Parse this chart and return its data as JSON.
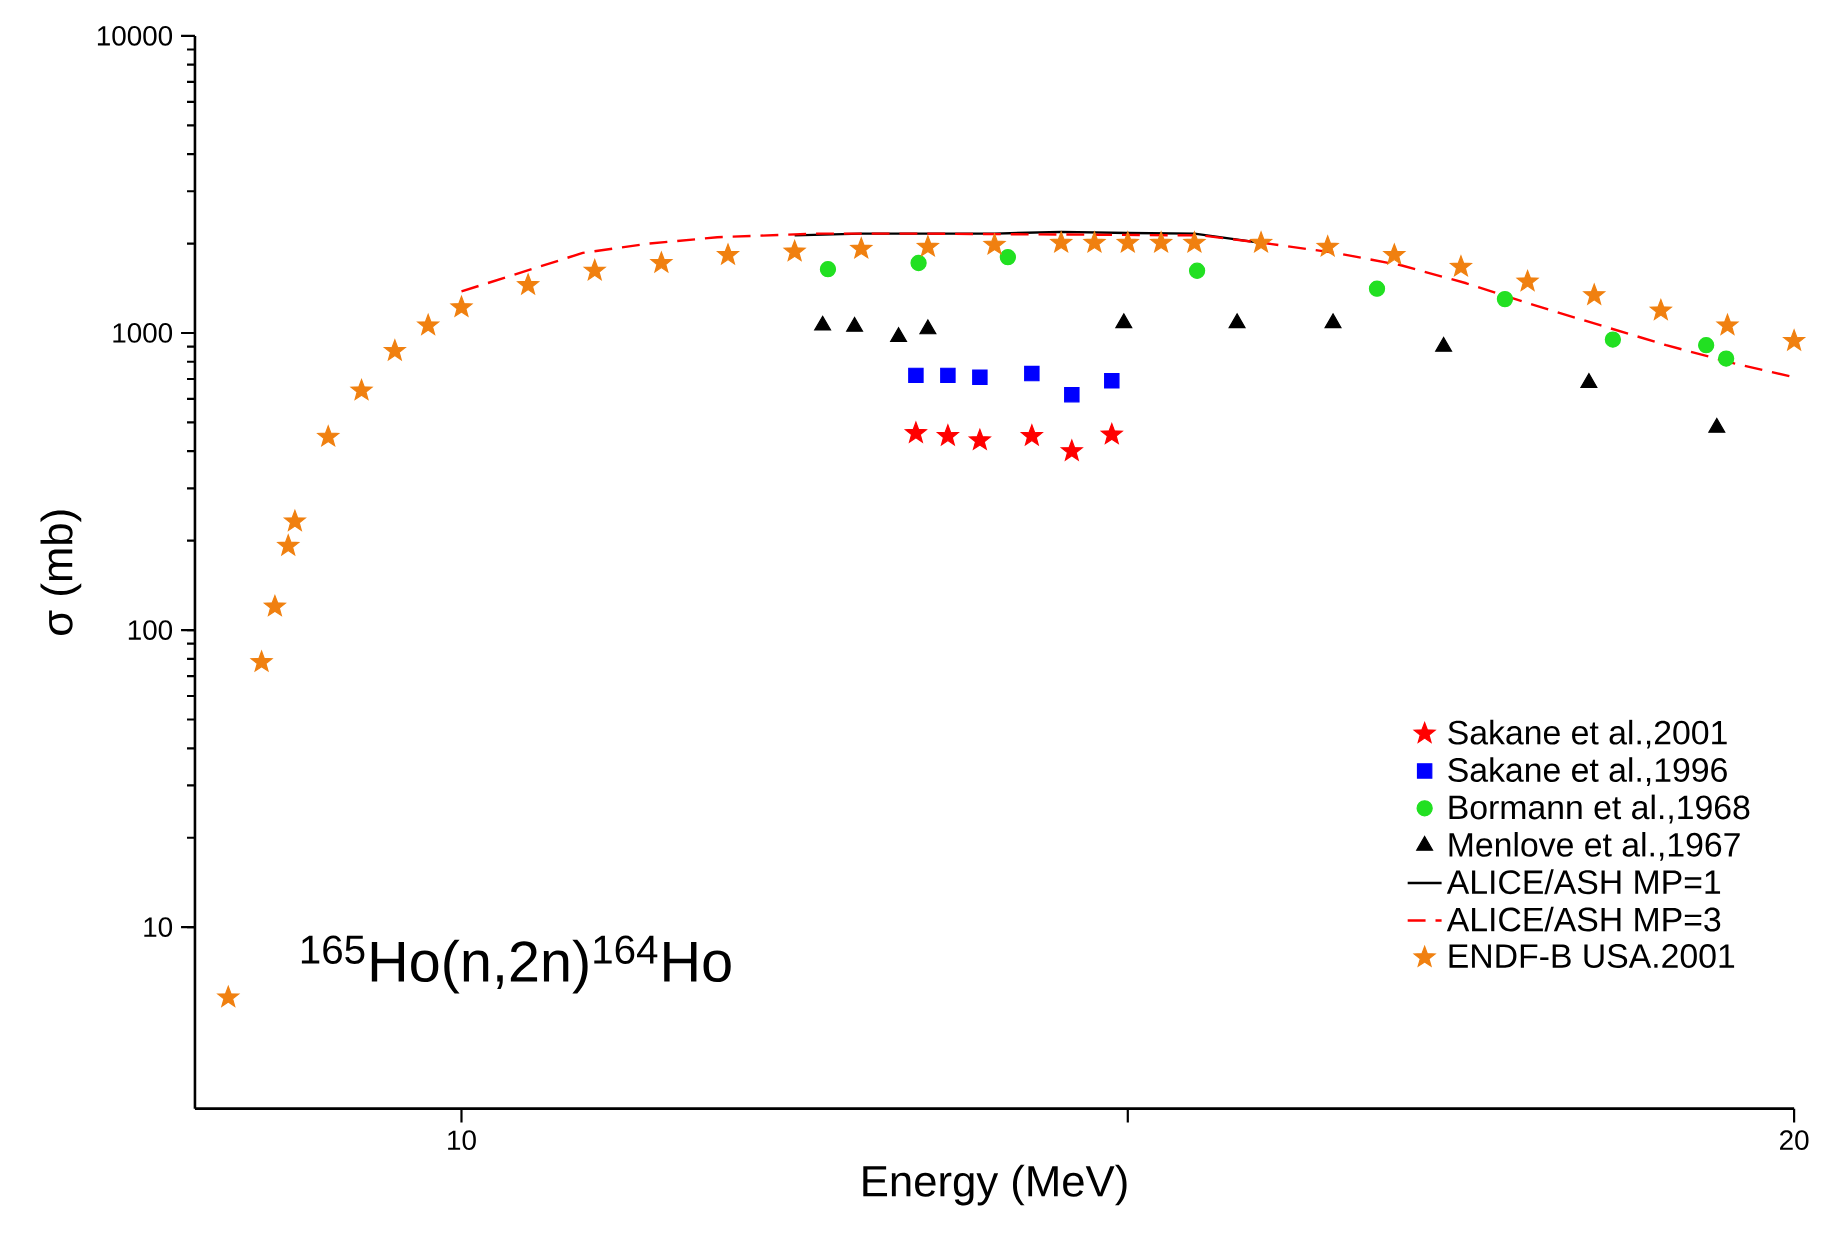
{
  "chart_data": {
    "type": "scatter",
    "xlabel": "Energy (MeV)",
    "ylabel": "σ (mb)",
    "log": "y",
    "grid": false,
    "legend": "bottom right",
    "xlim": [
      8,
      20
    ],
    "xticks": [
      10,
      {
        "value": 15,
        "label": null
      },
      20
    ],
    "ylim": [
      2.45,
      10000
    ],
    "yticks": [
      10,
      100,
      1000,
      10000
    ],
    "annotations": [
      "$^{165}$Ho(n,2n)$^{164}$Ho"
    ],
    "series": [
      {
        "name": "Sakane et al.,2001",
        "marker": "star",
        "color": "#ff0000",
        "x": [
          13.41,
          13.65,
          13.89,
          14.28,
          14.58,
          14.88
        ],
        "values": [
          460,
          450,
          435,
          450,
          400,
          455
        ]
      },
      {
        "name": "Sakane et al.,1996",
        "marker": "square",
        "color": "#0000ff",
        "x": [
          13.41,
          13.65,
          13.89,
          14.28,
          14.58,
          14.88
        ],
        "values": [
          720,
          720,
          710,
          730,
          620,
          690
        ]
      },
      {
        "name": "Bormann et al.,1968",
        "marker": "circle",
        "color": "#22e022",
        "x": [
          12.75,
          13.43,
          14.1,
          15.52,
          16.87,
          17.83,
          18.64,
          19.34,
          19.49
        ],
        "values": [
          1640,
          1720,
          1800,
          1620,
          1410,
          1300,
          950,
          910,
          820
        ]
      },
      {
        "name": "Menlove et al.,1967",
        "marker": "triangle",
        "color": "#000000",
        "x": [
          12.71,
          12.95,
          13.28,
          13.5,
          14.97,
          15.82,
          16.54,
          17.37,
          18.46,
          19.42
        ],
        "values": [
          1060,
          1050,
          970,
          1030,
          1080,
          1080,
          1080,
          900,
          680,
          480
        ]
      },
      {
        "name": "ALICE/ASH MP=1",
        "type": "line",
        "marker": "none",
        "line_style": "solid",
        "color": "#000000",
        "x": [
          12.5,
          13,
          13.5,
          14,
          14.5,
          15,
          15.5,
          16
        ],
        "values": [
          2130,
          2160,
          2160,
          2160,
          2190,
          2170,
          2160,
          2010
        ]
      },
      {
        "name": "ALICE/ASH MP=3",
        "type": "line",
        "marker": "none",
        "line_style": "dashed",
        "color": "#ff0000",
        "x": [
          10,
          10.91,
          11.41,
          11.92,
          12.66,
          13.41,
          15.55,
          16.05,
          16.56,
          17.05,
          17.54,
          18.05,
          18.55,
          19.04,
          19.55,
          20
        ],
        "values": [
          1380,
          1860,
          2000,
          2100,
          2160,
          2160,
          2130,
          2000,
          1860,
          1690,
          1470,
          1240,
          1060,
          910,
          790,
          710
        ]
      },
      {
        "name": "ENDF-B  USA.2001",
        "marker": "star",
        "color": "#f08010",
        "x": [
          8.25,
          8.5,
          8.6,
          8.7,
          8.75,
          9,
          9.25,
          9.5,
          9.75,
          10,
          10.5,
          11,
          11.5,
          12,
          12.5,
          13,
          13.5,
          14,
          14.5,
          14.75,
          15,
          15.25,
          15.5,
          16,
          16.5,
          17,
          17.5,
          18,
          18.5,
          19,
          19.5,
          20
        ],
        "values": [
          5.8,
          78,
          120,
          192,
          232,
          447,
          640,
          870,
          1060,
          1220,
          1450,
          1620,
          1720,
          1830,
          1880,
          1920,
          1950,
          1980,
          2010,
          2010,
          2010,
          2010,
          2010,
          2010,
          1950,
          1830,
          1670,
          1490,
          1340,
          1190,
          1060,
          940
        ]
      }
    ]
  }
}
